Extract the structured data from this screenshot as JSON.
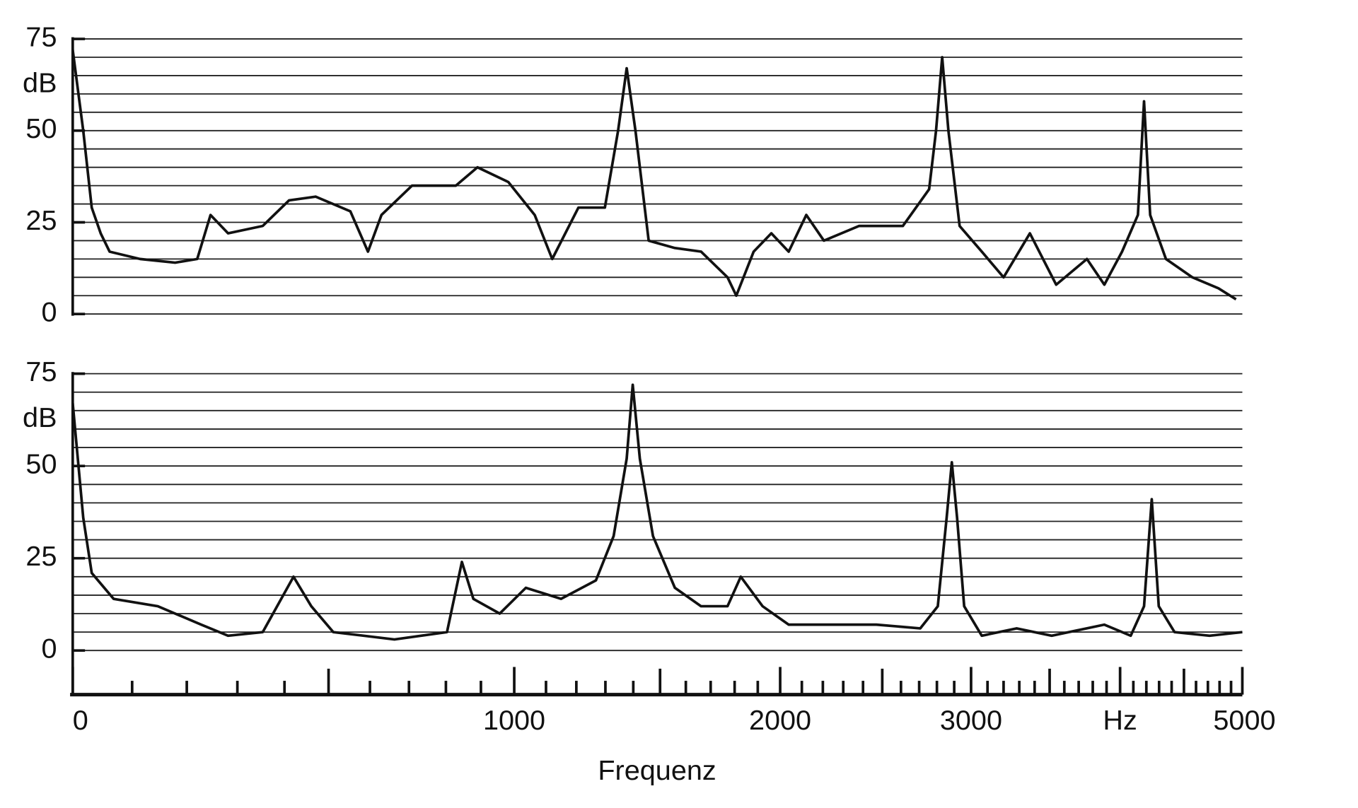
{
  "chart_data": [
    {
      "type": "line",
      "ylabel": "dB",
      "color": "#111111",
      "xlim": [
        0,
        5000
      ],
      "ylim": [
        0,
        75
      ],
      "yticks": [
        0,
        25,
        50,
        75
      ],
      "ygrid": [
        0,
        5,
        10,
        15,
        20,
        25,
        30,
        35,
        40,
        45,
        50,
        55,
        60,
        65,
        70,
        75
      ],
      "x": [
        0,
        17,
        31,
        46,
        61,
        114,
        178,
        220,
        246,
        281,
        353,
        410,
        470,
        552,
        595,
        629,
        708,
        828,
        890,
        982,
        1064,
        1120,
        1207,
        1298,
        1345,
        1376,
        1408,
        1457,
        1557,
        1661,
        1770,
        1807,
        1882,
        1960,
        2039,
        2121,
        2205,
        2379,
        2610,
        2756,
        2795,
        2830,
        2866,
        2932,
        3065,
        3200,
        3369,
        3544,
        3758,
        3884,
        4015,
        4135,
        4182,
        4230,
        4354,
        4570,
        4790,
        4944
      ],
      "values": [
        72,
        50,
        29,
        22,
        17,
        15,
        14,
        15,
        27,
        22,
        24,
        31,
        32,
        28,
        17,
        27,
        35,
        35,
        40,
        36,
        27,
        15,
        29,
        29,
        50,
        67,
        50,
        20,
        18,
        17,
        10,
        5,
        17,
        22,
        17,
        27,
        20,
        24,
        24,
        34,
        50,
        70,
        50,
        24,
        17,
        10,
        22,
        8,
        15,
        8,
        17,
        27,
        58,
        27,
        15,
        10,
        7,
        4
      ]
    },
    {
      "type": "line",
      "ylabel": "dB",
      "xlabel": "Frequenz",
      "color": "#111111",
      "xlim": [
        0,
        5000
      ],
      "ylim": [
        0,
        75
      ],
      "yticks": [
        0,
        25,
        50,
        75
      ],
      "ygrid": [
        0,
        5,
        10,
        15,
        20,
        25,
        30,
        35,
        40,
        45,
        50,
        55,
        60,
        65,
        70,
        75
      ],
      "xticks": [
        0,
        1000,
        2000,
        3000,
        {
          "value": 4000,
          "label": "Hz"
        },
        5000
      ],
      "xminorticks": [
        100,
        200,
        300,
        400,
        500,
        600,
        700,
        800,
        900,
        1100,
        1200,
        1300,
        1400,
        1500,
        1600,
        1700,
        1800,
        1900,
        2100,
        2200,
        2300,
        2400,
        2500,
        2600,
        2700,
        2800,
        2900,
        3100,
        3200,
        3300,
        3400,
        3500,
        3600,
        3700,
        3800,
        3900,
        4100,
        4200,
        4300,
        4400,
        4500,
        4600,
        4700,
        4800,
        4900
      ],
      "x": [
        0,
        17,
        31,
        68,
        146,
        228,
        281,
        353,
        420,
        460,
        511,
        662,
        803,
        845,
        878,
        956,
        1036,
        1149,
        1267,
        1329,
        1376,
        1398,
        1424,
        1473,
        1557,
        1661,
        1770,
        1826,
        1921,
        2039,
        2247,
        2469,
        2706,
        2805,
        2856,
        2886,
        2917,
        2959,
        3065,
        3283,
        3514,
        3884,
        4080,
        4182,
        4242,
        4297,
        4423,
        4714,
        5000
      ],
      "values": [
        67,
        36,
        21,
        14,
        12,
        7,
        4,
        5,
        20,
        12,
        5,
        3,
        5,
        24,
        14,
        10,
        17,
        14,
        19,
        31,
        52,
        72,
        52,
        31,
        17,
        12,
        12,
        20,
        12,
        7,
        7,
        7,
        6,
        12,
        36,
        51,
        36,
        12,
        4,
        6,
        4,
        7,
        4,
        12,
        41,
        12,
        5,
        4,
        5
      ]
    }
  ]
}
